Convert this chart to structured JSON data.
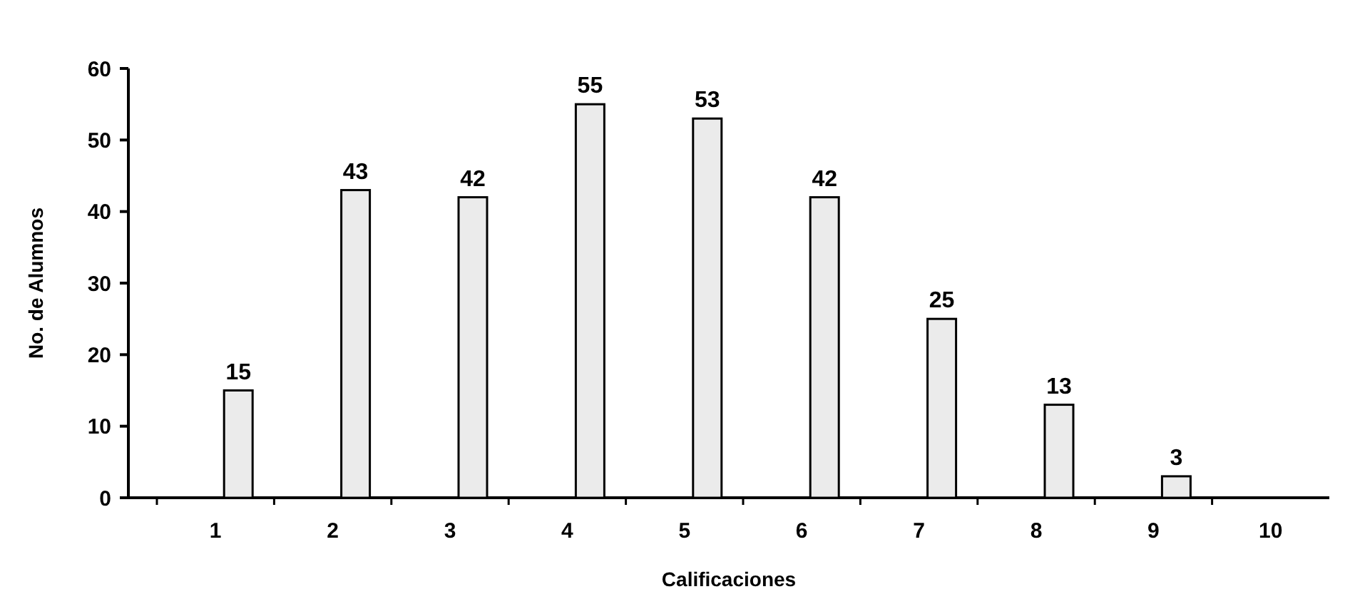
{
  "chart_data": {
    "type": "bar",
    "xlabel": "Calificaciones",
    "ylabel": "No. de Alumnos",
    "categories": [
      "1",
      "2",
      "3",
      "4",
      "5",
      "6",
      "7",
      "8",
      "9",
      "10"
    ],
    "values": [
      15,
      43,
      42,
      55,
      53,
      42,
      25,
      13,
      3,
      null
    ],
    "color": "#ebebeb",
    "ylim": [
      0,
      60
    ],
    "yticks": [
      0,
      10,
      20,
      30,
      40,
      50,
      60
    ],
    "data_labels": true
  }
}
